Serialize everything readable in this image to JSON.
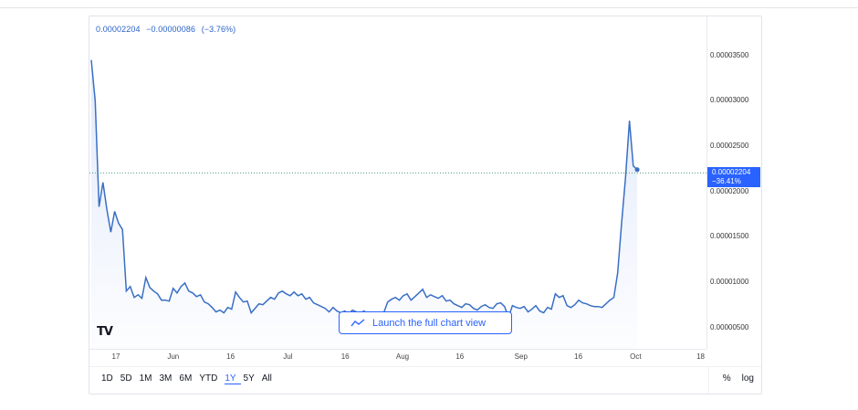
{
  "header": {
    "price": "0.00002204",
    "change": "−0.00000086",
    "change_pct": "(−3.76%)"
  },
  "price_tag": {
    "value": "0.00002204",
    "pct": "−36.41%"
  },
  "launch_label": "Launch the full chart view",
  "logo_text": "TV",
  "ranges": [
    "1D",
    "5D",
    "1M",
    "3M",
    "6M",
    "YTD",
    "1Y",
    "5Y",
    "All"
  ],
  "active_range": "1Y",
  "right_controls": {
    "percent": "%",
    "log": "log"
  },
  "colors": {
    "line": "#3a6fc4",
    "accent": "#2962ff",
    "fill_top": "#c9d8f5"
  },
  "chart_data": {
    "type": "area",
    "ylim": [
      3.7e-06,
      4e-06
    ],
    "yticks": [
      "0.00003500",
      "0.00003000",
      "0.00002500",
      "0.00002000",
      "0.00001500",
      "0.00001000",
      "0.00000500"
    ],
    "ytick_values": [
      3.5e-05,
      3e-05,
      2.5e-05,
      2e-05,
      1.5e-05,
      1e-05,
      5e-06
    ],
    "xticks": [
      "17",
      "Jun",
      "16",
      "Jul",
      "16",
      "Aug",
      "16",
      "Sep",
      "16",
      "Oct",
      "18"
    ],
    "xtick_days": [
      0,
      15,
      30,
      45,
      60,
      75,
      90,
      106,
      121,
      136,
      153
    ],
    "last_value": 2.204e-05,
    "series": [
      {
        "x": [
          0,
          1,
          2,
          3,
          4,
          5,
          6,
          7,
          8,
          9,
          10,
          11,
          12,
          13,
          14,
          15,
          16,
          17,
          18,
          19,
          20,
          21,
          22,
          23,
          24,
          25,
          26,
          27,
          28,
          29,
          30,
          31,
          32,
          33,
          34,
          35,
          36,
          37,
          38,
          39,
          40,
          41,
          42,
          43,
          44,
          45,
          46,
          47,
          48,
          49,
          50,
          51,
          52,
          53,
          54,
          55,
          56,
          57,
          58,
          59,
          60,
          61,
          62,
          63,
          64,
          65,
          66,
          67,
          68,
          69,
          70,
          71,
          72,
          73,
          74,
          75,
          76,
          77,
          78,
          79,
          80,
          81,
          82,
          83,
          84,
          85,
          86,
          87,
          88,
          89,
          90,
          91,
          92,
          93,
          94,
          95,
          96,
          97,
          98,
          99,
          100,
          101,
          102,
          103,
          104,
          105,
          106,
          107,
          108,
          109,
          110,
          111,
          112,
          113,
          114,
          115,
          116,
          117,
          118,
          119,
          120,
          121,
          122,
          123,
          124,
          125,
          126,
          127,
          128,
          129,
          130,
          131,
          132,
          133,
          134,
          135,
          136,
          137,
          138,
          139,
          140,
          141,
          142,
          143,
          144,
          145,
          146,
          147
        ],
        "values": [
          3.45e-05,
          3e-05,
          1.83e-05,
          2.1e-05,
          1.8e-05,
          1.55e-05,
          1.78e-05,
          1.65e-05,
          1.58e-05,
          9e-06,
          9.5e-06,
          8.3e-06,
          8.6e-06,
          8.2e-06,
          1.05e-05,
          9.4e-06,
          9e-06,
          8.7e-06,
          8e-06,
          8e-06,
          7.9e-06,
          9.3e-06,
          8.8e-06,
          9.5e-06,
          9.9e-06,
          9e-06,
          8.8e-06,
          8.4e-06,
          8.6e-06,
          7.8e-06,
          7.6e-06,
          7.2e-06,
          6.7e-06,
          6.9e-06,
          6.6e-06,
          7.2e-06,
          7e-06,
          8.9e-06,
          8.3e-06,
          7.8e-06,
          7.9e-06,
          6.6e-06,
          7.1e-06,
          7.6e-06,
          7.5e-06,
          7.9e-06,
          8.3e-06,
          8.1e-06,
          8.8e-06,
          9e-06,
          8.7e-06,
          8.5e-06,
          8.9e-06,
          8.5e-06,
          8.7e-06,
          8.1e-06,
          8.3e-06,
          7.7e-06,
          7.5e-06,
          7.3e-06,
          7.1e-06,
          6.7e-06,
          7.2e-06,
          6.8e-06,
          6.6e-06,
          6.8e-06,
          6.5e-06,
          6.9e-06,
          6.7e-06,
          6.6e-06,
          6.8e-06,
          6.2e-06,
          6.5e-06,
          6.7e-06,
          6.4e-06,
          6.6e-06,
          7.8e-06,
          8.1e-06,
          8.3e-06,
          8e-06,
          8.5e-06,
          8.7e-06,
          8e-06,
          8.4e-06,
          8.8e-06,
          9.2e-06,
          8.3e-06,
          8.6e-06,
          8.4e-06,
          8.2e-06,
          8.5e-06,
          7.9e-06,
          8e-06,
          7.6e-06,
          7.4e-06,
          7.2e-06,
          7.6e-06,
          7.5e-06,
          7.1e-06,
          6.9e-06,
          7.3e-06,
          7.5e-06,
          7.2e-06,
          7.1e-06,
          7.6e-06,
          7.7e-06,
          7.3e-06,
          6.1e-06,
          7.4e-06,
          7.2e-06,
          7.1e-06,
          7.3e-06,
          6.7e-06,
          7e-06,
          7.4e-06,
          6.8e-06,
          6.6e-06,
          7.2e-06,
          7e-06,
          8.7e-06,
          8.3e-06,
          8.5e-06,
          7.4e-06,
          7.2e-06,
          7.5e-06,
          8e-06,
          7.7e-06,
          7.6e-06,
          7.4e-06,
          7.3e-06,
          7.3e-06,
          7.2e-06,
          7.6e-06,
          8e-06,
          8.3e-06,
          1.1e-05,
          1.65e-05,
          2.15e-05,
          2.78e-05,
          2.28e-05,
          2.24e-05,
          2.2e-05,
          2.2e-05,
          2.2e-05,
          2.2e-05,
          2.2e-05,
          2.2e-05,
          2.2e-05
        ]
      }
    ]
  }
}
